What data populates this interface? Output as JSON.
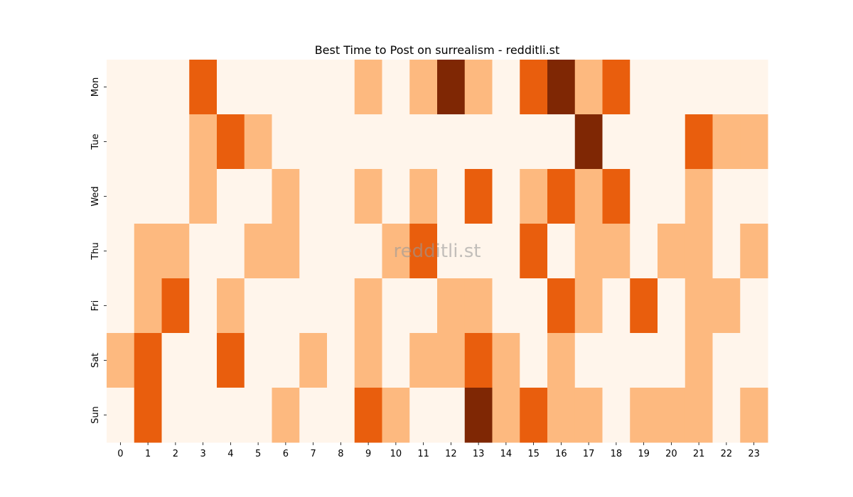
{
  "chart_data": {
    "type": "heatmap",
    "title": "Best Time to Post on surrealism - redditli.st",
    "watermark": "redditli.st",
    "x_categories": [
      "0",
      "1",
      "2",
      "3",
      "4",
      "5",
      "6",
      "7",
      "8",
      "9",
      "10",
      "11",
      "12",
      "13",
      "14",
      "15",
      "16",
      "17",
      "18",
      "19",
      "20",
      "21",
      "22",
      "23"
    ],
    "y_categories": [
      "Mon",
      "Tue",
      "Wed",
      "Thu",
      "Fri",
      "Sat",
      "Sun"
    ],
    "levels": [
      0,
      1,
      2,
      3
    ],
    "colors": {
      "0": "#fff5eb",
      "1": "#fdb97f",
      "2": "#e95e0d",
      "3": "#7f2704"
    },
    "values": [
      [
        0,
        0,
        0,
        2,
        0,
        0,
        0,
        0,
        0,
        1,
        0,
        1,
        3,
        1,
        0,
        2,
        3,
        1,
        2,
        0,
        0,
        0,
        0,
        0
      ],
      [
        0,
        0,
        0,
        1,
        2,
        1,
        0,
        0,
        0,
        0,
        0,
        0,
        0,
        0,
        0,
        0,
        0,
        3,
        0,
        0,
        0,
        2,
        1,
        1
      ],
      [
        0,
        0,
        0,
        1,
        0,
        0,
        1,
        0,
        0,
        1,
        0,
        1,
        0,
        2,
        0,
        1,
        2,
        1,
        2,
        0,
        0,
        1,
        0,
        0
      ],
      [
        0,
        1,
        1,
        0,
        0,
        1,
        1,
        0,
        0,
        0,
        1,
        2,
        0,
        0,
        0,
        2,
        0,
        1,
        1,
        0,
        1,
        1,
        0,
        1
      ],
      [
        0,
        1,
        2,
        0,
        1,
        0,
        0,
        0,
        0,
        1,
        0,
        0,
        1,
        1,
        0,
        0,
        2,
        1,
        0,
        2,
        0,
        1,
        1,
        0
      ],
      [
        1,
        2,
        0,
        0,
        2,
        0,
        0,
        1,
        0,
        1,
        0,
        1,
        1,
        2,
        1,
        0,
        1,
        0,
        0,
        0,
        0,
        1,
        0,
        0
      ],
      [
        0,
        2,
        0,
        0,
        0,
        0,
        1,
        0,
        0,
        2,
        1,
        0,
        0,
        3,
        1,
        2,
        1,
        1,
        0,
        1,
        1,
        1,
        0,
        1
      ]
    ],
    "grid": false,
    "legend": "none"
  }
}
